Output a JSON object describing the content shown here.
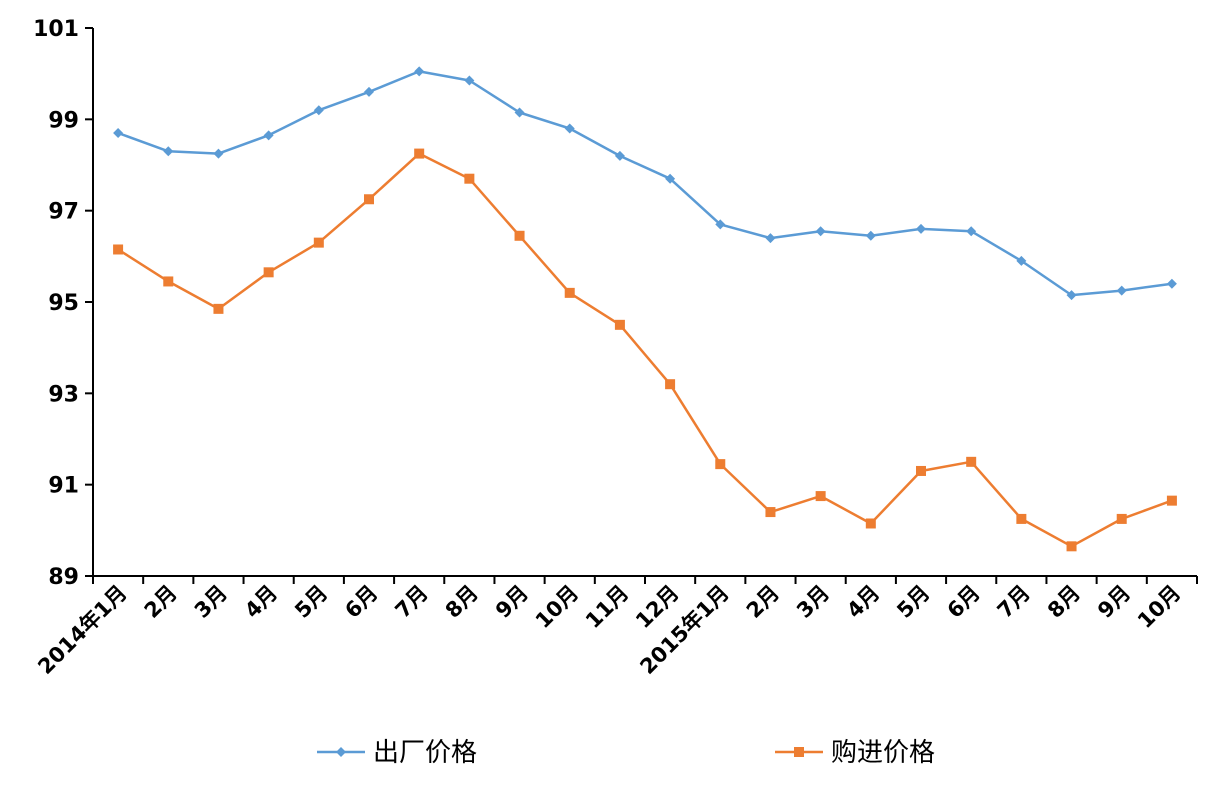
{
  "chart_data": {
    "type": "line",
    "title": "",
    "xlabel": "",
    "ylabel": "",
    "categories": [
      "2014年1月",
      "2月",
      "3月",
      "4月",
      "5月",
      "6月",
      "7月",
      "8月",
      "9月",
      "10月",
      "11月",
      "12月",
      "2015年1月",
      "2月",
      "3月",
      "4月",
      "5月",
      "6月",
      "7月",
      "8月",
      "9月",
      "10月"
    ],
    "yticks": [
      "89",
      "91",
      "93",
      "95",
      "97",
      "99",
      "101"
    ],
    "ylim": [
      89,
      101
    ],
    "grid": false,
    "legend_position": "bottom",
    "series": [
      {
        "name": "出厂价格",
        "color": "#5B9BD5",
        "marker": "diamond",
        "values": [
          98.7,
          98.3,
          98.25,
          98.65,
          99.2,
          99.6,
          100.05,
          99.85,
          99.15,
          98.8,
          98.2,
          97.7,
          96.7,
          96.4,
          96.55,
          96.45,
          96.6,
          96.55,
          95.9,
          95.15,
          95.25,
          95.4
        ]
      },
      {
        "name": "购进价格",
        "color": "#ED7D31",
        "marker": "square",
        "values": [
          96.15,
          95.45,
          94.85,
          95.65,
          96.3,
          97.25,
          98.25,
          97.7,
          96.45,
          95.2,
          94.5,
          93.2,
          91.45,
          90.4,
          90.75,
          90.15,
          91.3,
          91.5,
          90.25,
          89.65,
          90.25,
          90.65
        ]
      }
    ]
  }
}
